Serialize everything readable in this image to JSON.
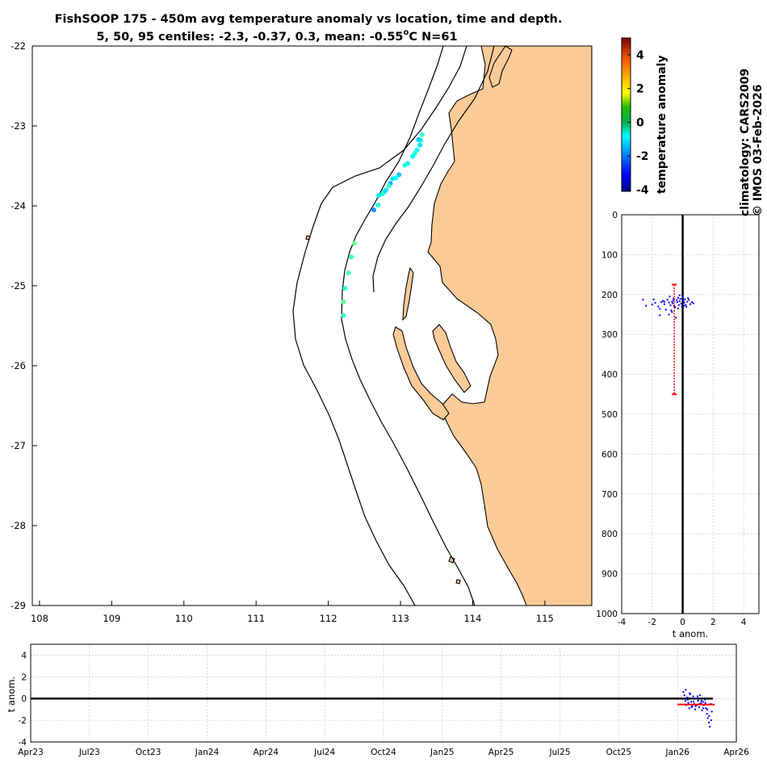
{
  "title": {
    "line1": "FishSOOP 175 - 450m avg temperature anomaly vs location, time and depth.",
    "line2": "5, 50, 95 centiles: -2.3, -0.37, 0.3, mean: -0.55",
    "degree_sup": "o",
    "line2_tail": "C N=61"
  },
  "side_label": {
    "climatology": "climatology: CARS2009",
    "credit": "© IMOS 03-Feb-2026"
  },
  "colors": {
    "land": "#fbcb97",
    "point_blue": "#0000ff",
    "mean_red": "#ff0000",
    "axis": "#000000"
  },
  "chart_data": [
    {
      "name": "map",
      "type": "scatter",
      "xlabel": "",
      "ylabel": "",
      "xlim": [
        107.9,
        115.65
      ],
      "ylim": [
        -29,
        -22
      ],
      "xticks": [
        "108",
        "109",
        "110",
        "111",
        "112",
        "113",
        "114",
        "115"
      ],
      "yticks": [
        "-22",
        "-23",
        "-24",
        "-25",
        "-26",
        "-27",
        "-28",
        "-29"
      ],
      "color_by": "temperature anomaly",
      "points": [
        {
          "lon": 113.3,
          "lat": -23.11,
          "anom": -0.2
        },
        {
          "lon": 113.28,
          "lat": -23.18,
          "anom": -0.5
        },
        {
          "lon": 113.27,
          "lat": -23.24,
          "anom": -0.9
        },
        {
          "lon": 113.25,
          "lat": -23.17,
          "anom": -1.1
        },
        {
          "lon": 113.23,
          "lat": -23.3,
          "anom": -0.6
        },
        {
          "lon": 113.2,
          "lat": -23.34,
          "anom": -0.3
        },
        {
          "lon": 113.17,
          "lat": -23.38,
          "anom": -0.7
        },
        {
          "lon": 113.1,
          "lat": -23.47,
          "anom": -0.8
        },
        {
          "lon": 113.06,
          "lat": -23.49,
          "anom": -0.4
        },
        {
          "lon": 112.98,
          "lat": -23.61,
          "anom": -1.2
        },
        {
          "lon": 112.94,
          "lat": -23.65,
          "anom": -0.6
        },
        {
          "lon": 112.89,
          "lat": -23.66,
          "anom": -0.9
        },
        {
          "lon": 112.86,
          "lat": -23.72,
          "anom": -1.4
        },
        {
          "lon": 112.84,
          "lat": -23.75,
          "anom": -0.2
        },
        {
          "lon": 112.8,
          "lat": -23.8,
          "anom": -0.5
        },
        {
          "lon": 112.78,
          "lat": -23.82,
          "anom": -1.0
        },
        {
          "lon": 112.75,
          "lat": -23.85,
          "anom": -0.3
        },
        {
          "lon": 112.7,
          "lat": -23.87,
          "anom": -0.8
        },
        {
          "lon": 112.69,
          "lat": -23.99,
          "anom": -0.4
        },
        {
          "lon": 112.63,
          "lat": -24.05,
          "anom": -1.6
        },
        {
          "lon": 112.36,
          "lat": -24.47,
          "anom": 0.3
        },
        {
          "lon": 112.32,
          "lat": -24.64,
          "anom": -0.2
        },
        {
          "lon": 112.28,
          "lat": -24.84,
          "anom": -0.1
        },
        {
          "lon": 112.23,
          "lat": -25.03,
          "anom": -0.3
        },
        {
          "lon": 112.21,
          "lat": -25.2,
          "anom": 0.1
        },
        {
          "lon": 112.21,
          "lat": -25.37,
          "anom": -0.2
        }
      ]
    },
    {
      "name": "depth_profile",
      "type": "scatter",
      "xlabel": "t anom.",
      "ylabel": "",
      "xlim": [
        -4,
        5
      ],
      "ylim": [
        0,
        1000
      ],
      "y_reversed": true,
      "xticks": [
        "-4",
        "-2",
        "0",
        "2",
        "4"
      ],
      "yticks": [
        "0",
        "100",
        "200",
        "300",
        "400",
        "500",
        "600",
        "700",
        "800",
        "900",
        "1000"
      ],
      "mean_bar": {
        "x": -0.55,
        "depth_min": 175,
        "depth_max": 450
      },
      "x": [
        -2.6,
        -2.4,
        -1.9,
        -1.8,
        -1.6,
        -1.5,
        -1.4,
        -1.3,
        -1.2,
        -1.1,
        -1.0,
        -0.9,
        -0.85,
        -0.8,
        -0.75,
        -0.7,
        -0.65,
        -0.6,
        -0.55,
        -0.5,
        -0.4,
        -0.35,
        -0.3,
        -0.25,
        -0.2,
        -0.15,
        -0.1,
        -0.05,
        0.0,
        0.05,
        0.1,
        0.15,
        0.2,
        0.3,
        0.4,
        0.5,
        0.6,
        0.7,
        -0.9,
        -0.7,
        -1.2,
        -0.45,
        -0.3,
        0.25,
        0.35,
        -0.6,
        -1.5,
        -2.0,
        -0.2,
        0.1
      ],
      "y": [
        213,
        228,
        212,
        221,
        230,
        236,
        219,
        216,
        224,
        238,
        213,
        220,
        205,
        227,
        240,
        218,
        222,
        210,
        229,
        232,
        214,
        219,
        208,
        226,
        217,
        211,
        223,
        230,
        206,
        215,
        220,
        212,
        226,
        218,
        213,
        224,
        219,
        222,
        250,
        244,
        218,
        258,
        235,
        231,
        209,
        215,
        252,
        225,
        202,
        228
      ]
    },
    {
      "name": "time_series",
      "type": "scatter",
      "xlabel": "",
      "ylabel": "t anom.",
      "xlim": [
        "Apr23",
        "Apr26"
      ],
      "ylim": [
        -4,
        5
      ],
      "xticks": [
        "Apr23",
        "Jul23",
        "Oct23",
        "Jan24",
        "Apr24",
        "Jul24",
        "Oct24",
        "Jan25",
        "Apr25",
        "Jul25",
        "Oct25",
        "Jan26",
        "Apr26"
      ],
      "yticks": [
        "4",
        "2",
        "0",
        "-2",
        "-4"
      ],
      "mean_line": {
        "x_start": "Jan26",
        "x_end": "Feb26",
        "value": -0.55
      },
      "x_months": [
        33.3,
        33.35,
        33.4,
        33.45,
        33.5,
        33.55,
        33.6,
        33.65,
        33.7,
        33.75,
        33.8,
        33.85,
        33.9,
        33.95,
        34.0,
        34.05,
        34.1,
        34.15,
        34.2,
        34.25,
        34.3,
        34.35,
        34.4,
        34.45,
        34.5,
        34.55,
        34.6,
        34.65,
        34.7,
        34.75,
        33.42,
        33.52,
        33.62,
        33.72,
        33.82,
        33.92,
        34.02,
        34.12,
        34.22,
        34.32,
        34.42,
        34.52,
        34.62,
        34.72
      ],
      "values": [
        0.6,
        0.3,
        -0.2,
        -0.6,
        0.1,
        -0.4,
        -0.9,
        0.4,
        -0.3,
        -0.7,
        0.2,
        -0.5,
        -1.0,
        0.0,
        -0.6,
        -0.2,
        -0.8,
        0.3,
        -0.4,
        -1.1,
        -0.3,
        -0.6,
        -0.1,
        -0.9,
        -1.4,
        -1.8,
        -2.2,
        -2.6,
        -0.5,
        -1.2,
        0.8,
        -0.1,
        0.5,
        -0.8,
        -0.3,
        -0.7,
        0.2,
        -0.5,
        -0.2,
        -0.9,
        -0.4,
        -1.0,
        -1.6,
        -2.0
      ]
    },
    {
      "name": "colorbar",
      "type": "heatmap",
      "label": "temperature anomaly",
      "range": [
        -4.1,
        5
      ],
      "ticks": [
        "4",
        "2",
        "0",
        "-2",
        "-4"
      ],
      "colormap": "jet"
    }
  ]
}
